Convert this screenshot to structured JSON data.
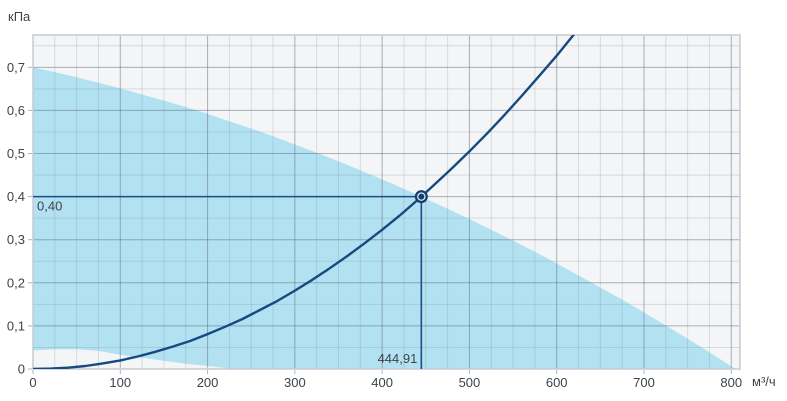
{
  "colors": {
    "page_background": "#ffffff",
    "plot_background": "#f4f5f7",
    "envelope_fill": "#b2e2f2",
    "grid_minor": "rgba(120,125,135,0.22)",
    "grid_major": "rgba(95,105,125,0.38)",
    "plot_border": "#c5cad2",
    "tick_mark": "#aeb4bc",
    "curve": "#164a7f",
    "crosshair": "#1a4e80",
    "marker_fill": "#113e6e",
    "marker_inner_ring": "#d9e7f3",
    "label_text": "#3f4246",
    "value_text": "#35383c"
  },
  "chart_data": {
    "type": "area",
    "title": "",
    "xlabel": "м³/ч",
    "ylabel": "кПа",
    "xlim": [
      0,
      810
    ],
    "ylim": [
      0,
      0.775
    ],
    "grid": {
      "on": true,
      "minor_x_step": 25,
      "minor_y_step": 0.05
    },
    "x_ticks": [
      0,
      100,
      200,
      300,
      400,
      500,
      600,
      700,
      800
    ],
    "x_tick_labels": [
      "0",
      "100",
      "200",
      "300",
      "400",
      "500",
      "600",
      "700",
      "800"
    ],
    "y_ticks": [
      0,
      0.1,
      0.2,
      0.3,
      0.4,
      0.5,
      0.6,
      0.7
    ],
    "y_tick_labels": [
      "0",
      "0,1",
      "0,2",
      "0,3",
      "0,4",
      "0,5",
      "0,6",
      "0,7"
    ],
    "legend": {
      "visible": false
    },
    "series": [
      {
        "name": "operating-envelope",
        "type": "area",
        "upper": [
          [
            0,
            0.7
          ],
          [
            25,
            0.689
          ],
          [
            50,
            0.677
          ],
          [
            75,
            0.664
          ],
          [
            100,
            0.651
          ],
          [
            125,
            0.637
          ],
          [
            150,
            0.623
          ],
          [
            175,
            0.608
          ],
          [
            200,
            0.592
          ],
          [
            225,
            0.575
          ],
          [
            250,
            0.558
          ],
          [
            275,
            0.54
          ],
          [
            300,
            0.521
          ],
          [
            325,
            0.502
          ],
          [
            350,
            0.482
          ],
          [
            375,
            0.461
          ],
          [
            400,
            0.44
          ],
          [
            425,
            0.418
          ],
          [
            444.91,
            0.4
          ],
          [
            450,
            0.395
          ],
          [
            475,
            0.372
          ],
          [
            500,
            0.348
          ],
          [
            525,
            0.323
          ],
          [
            550,
            0.298
          ],
          [
            575,
            0.272
          ],
          [
            600,
            0.245
          ],
          [
            625,
            0.217
          ],
          [
            650,
            0.189
          ],
          [
            675,
            0.161
          ],
          [
            700,
            0.131
          ],
          [
            725,
            0.101
          ],
          [
            750,
            0.07
          ],
          [
            775,
            0.039
          ],
          [
            800,
            0.006
          ],
          [
            805,
            0
          ]
        ],
        "lower": [
          [
            0,
            0.043
          ],
          [
            25,
            0.046
          ],
          [
            50,
            0.046
          ],
          [
            75,
            0.042
          ],
          [
            100,
            0.033
          ],
          [
            125,
            0.026
          ],
          [
            150,
            0.019
          ],
          [
            175,
            0.012
          ],
          [
            200,
            0.007
          ],
          [
            230,
            0
          ]
        ]
      },
      {
        "name": "system-resistance-curve",
        "type": "line",
        "points": [
          [
            0,
            0
          ],
          [
            20,
            0.001
          ],
          [
            40,
            0.003
          ],
          [
            60,
            0.007
          ],
          [
            80,
            0.013
          ],
          [
            100,
            0.02
          ],
          [
            120,
            0.029
          ],
          [
            140,
            0.04
          ],
          [
            160,
            0.052
          ],
          [
            180,
            0.065
          ],
          [
            200,
            0.081
          ],
          [
            220,
            0.098
          ],
          [
            240,
            0.116
          ],
          [
            260,
            0.137
          ],
          [
            280,
            0.158
          ],
          [
            300,
            0.182
          ],
          [
            320,
            0.207
          ],
          [
            340,
            0.234
          ],
          [
            360,
            0.262
          ],
          [
            380,
            0.292
          ],
          [
            400,
            0.323
          ],
          [
            420,
            0.356
          ],
          [
            440,
            0.391
          ],
          [
            444.91,
            0.4
          ],
          [
            460,
            0.428
          ],
          [
            480,
            0.466
          ],
          [
            500,
            0.505
          ],
          [
            520,
            0.546
          ],
          [
            540,
            0.589
          ],
          [
            560,
            0.634
          ],
          [
            580,
            0.68
          ],
          [
            600,
            0.727
          ],
          [
            620,
            0.777
          ]
        ]
      }
    ],
    "operating_point": {
      "x": 444.91,
      "y": 0.4,
      "x_label": "444,91",
      "y_label": "0,40"
    }
  }
}
